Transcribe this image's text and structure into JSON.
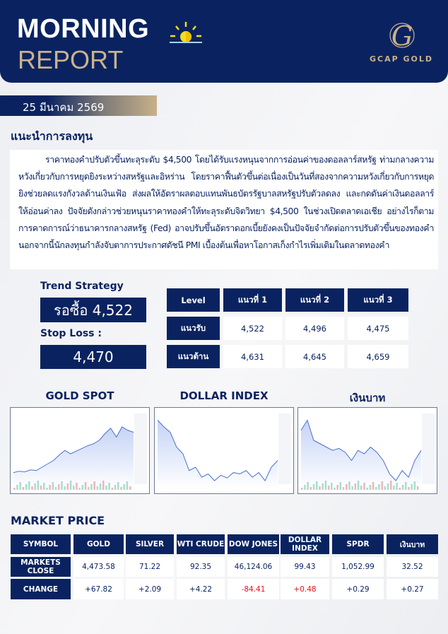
{
  "header": {
    "title_line1": "MORNING",
    "title_line2": "REPORT",
    "brand": "GCAP GOLD",
    "brand_letter": "G",
    "icon": "sunrise-icon",
    "colors": {
      "navy": "#0a2360",
      "gold": "#c9b28c",
      "sun": "#f5dc1e"
    }
  },
  "date": "25 มีนาคม 2569",
  "advice": {
    "title": "แนะนำการลงทุน",
    "text": "ราคาทองคำปรับตัวขึ้นทะลุระดับ $4,500 โดยได้รับแรงหนุนจากการอ่อนค่าของดอลลาร์สหรัฐ ท่ามกลางความหวังเกี่ยวกับการหยุดยิงระหว่างสหรัฐและอิหร่าน  โดยราคาฟื้นตัวขึ้นต่อเนื่องเป็นวันที่สองจากความหวังเกี่ยวกับการหยุดยิงช่วยลดแรงกังวลด้านเงินเฟ้อ ส่งผลให้อัตราผลตอบแทนพันธบัตรรัฐบาลสหรัฐปรับตัวลดลง และกดดันค่าเงินดอลลาร์ให้อ่อนค่าลง ปัจจัยดังกล่าวช่วยหนุนราคาทองคำให้ทะลุระดับจิตวิทยา $4,500 ในช่วงเปิดตลาดเอเชีย  อย่างไรก็ตาม การคาดการณ์ว่าธนาคารกลางสหรัฐ (Fed) อาจปรับขึ้นอัตราดอกเบี้ยยังคงเป็นปัจจัยจำกัดต่อการปรับตัวขึ้นของทองคำ นอกจากนี้นักลงทุนกำลังจับตาการประกาศดัชนี PMI เบื้องต้นเพื่อหาโอกาสเก็งกำไรเพิ่มเติมในตลาดทองคำ"
  },
  "strategy": {
    "trend_label": "Trend Strategy",
    "trend_value": "รอซื้อ 4,522",
    "stop_label": "Stop Loss :",
    "stop_value": "4,470"
  },
  "levels": {
    "headers": [
      "Level",
      "แนวที่ 1",
      "แนวที่ 2",
      "แนวที่ 3"
    ],
    "rows": [
      {
        "label": "แนวรับ",
        "values": [
          "4,522",
          "4,496",
          "4,475"
        ]
      },
      {
        "label": "แนวต้าน",
        "values": [
          "4,631",
          "4,645",
          "4,659"
        ]
      }
    ]
  },
  "charts": [
    {
      "title": "GOLD SPOT"
    },
    {
      "title": "DOLLAR INDEX"
    },
    {
      "title": "เงินบาท"
    }
  ],
  "market": {
    "title": "MARKET PRICE",
    "headers": [
      "SYMBOL",
      "GOLD",
      "SILVER",
      "WTI CRUDE",
      "DOW JONES",
      "DOLLAR INDEX",
      "SPDR",
      "เงินบาท"
    ],
    "rows": [
      {
        "label": "MARKETS CLOSE",
        "values": [
          "4,473.58",
          "71.22",
          "92.35",
          "46,124.06",
          "99.43",
          "1,052.99",
          "32.52"
        ]
      },
      {
        "label": "CHANGE",
        "values": [
          "+67.82",
          "+2.09",
          "+4.22",
          "-84.41",
          "+0.48",
          "+0.29",
          "+0.27"
        ],
        "negative_color": "#e8141c",
        "red_indices": [
          3,
          4
        ]
      }
    ]
  }
}
